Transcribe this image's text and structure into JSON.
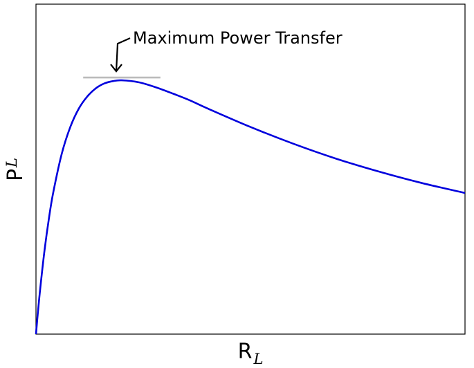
{
  "chart_data": {
    "type": "line",
    "title": "",
    "xlabel": {
      "main": "R",
      "subscript": "L"
    },
    "ylabel": {
      "main": "P",
      "subscript": "L"
    },
    "xlim": [
      0,
      5
    ],
    "ylim": [
      0,
      1.3
    ],
    "grid": false,
    "show_ticks": false,
    "series": [
      {
        "color": "#0000dd",
        "x": [
          0,
          0.02,
          0.05,
          0.1,
          0.15,
          0.2,
          0.3,
          0.4,
          0.5,
          0.6,
          0.7,
          0.8,
          0.9,
          1.0,
          1.2,
          1.4,
          1.6,
          1.8,
          2.0,
          2.5,
          3.0,
          3.5,
          4.0,
          4.5,
          5.0
        ],
        "y": [
          0,
          0.077,
          0.181,
          0.331,
          0.454,
          0.556,
          0.71,
          0.816,
          0.889,
          0.937,
          0.969,
          0.988,
          0.997,
          1.0,
          0.992,
          0.972,
          0.947,
          0.92,
          0.889,
          0.816,
          0.75,
          0.691,
          0.64,
          0.595,
          0.556
        ]
      }
    ],
    "annotations": [
      {
        "text": "Maximum Power Transfer",
        "x": 1.0,
        "y": 1.0,
        "marker": "down-arrow",
        "reference_line": {
          "x_from": 0.55,
          "x_to": 1.45,
          "y": 1.0,
          "color": "#bbbbbb"
        }
      }
    ]
  }
}
